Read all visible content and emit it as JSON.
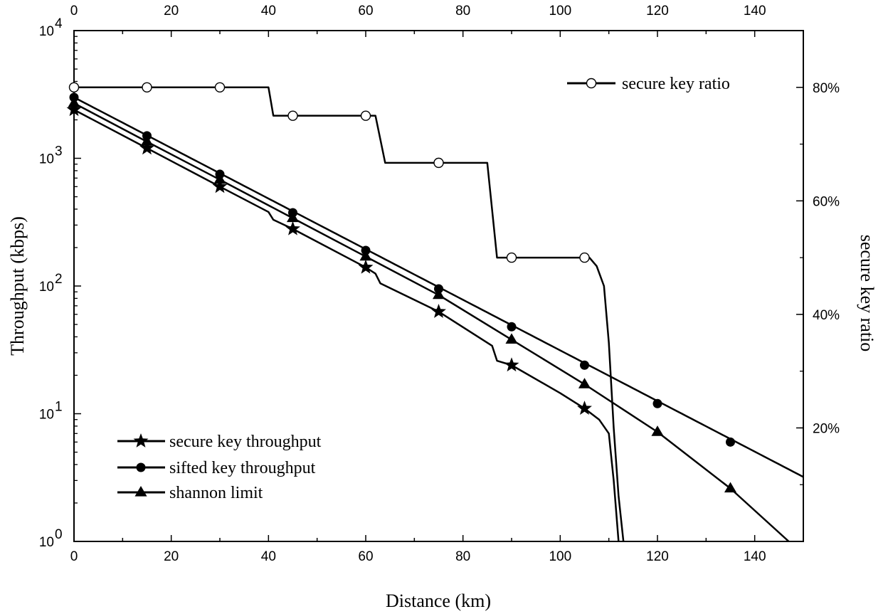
{
  "chart_data": {
    "type": "line",
    "xlabel": "Distance (km)",
    "ylabel": "Throughput (kbps)",
    "y2label": "secure key ratio",
    "xlim": [
      0,
      150
    ],
    "ylim": [
      1,
      10000
    ],
    "y_scale": "log",
    "y2lim": [
      0,
      0.9
    ],
    "x_ticks": [
      0,
      20,
      40,
      60,
      80,
      100,
      120,
      140
    ],
    "y_ticks": [
      {
        "value": 1,
        "base": "10",
        "exp": "0"
      },
      {
        "value": 10,
        "base": "10",
        "exp": "1"
      },
      {
        "value": 100,
        "base": "10",
        "exp": "2"
      },
      {
        "value": 1000,
        "base": "10",
        "exp": "3"
      },
      {
        "value": 10000,
        "base": "10",
        "exp": "4"
      }
    ],
    "y2_ticks": [
      {
        "value": 0.2,
        "label": "20%"
      },
      {
        "value": 0.4,
        "label": "40%"
      },
      {
        "value": 0.6,
        "label": "60%"
      },
      {
        "value": 0.8,
        "label": "80%"
      }
    ],
    "grid": false,
    "series": [
      {
        "name": "secure key throughput",
        "axis": "left",
        "marker": "star",
        "line": [
          [
            0,
            2400
          ],
          [
            15,
            1200
          ],
          [
            30,
            600
          ],
          [
            40,
            380
          ],
          [
            41,
            330
          ],
          [
            45,
            280
          ],
          [
            60,
            140
          ],
          [
            62,
            125
          ],
          [
            63,
            105
          ],
          [
            75,
            63
          ],
          [
            85,
            36
          ],
          [
            86,
            34
          ],
          [
            87,
            26
          ],
          [
            90,
            24
          ],
          [
            100,
            14.5
          ],
          [
            105,
            11
          ],
          [
            108,
            9
          ],
          [
            110,
            7
          ],
          [
            111,
            3
          ],
          [
            112,
            1
          ]
        ],
        "markers": [
          [
            0,
            2400
          ],
          [
            15,
            1200
          ],
          [
            30,
            600
          ],
          [
            45,
            280
          ],
          [
            60,
            140
          ],
          [
            75,
            63
          ],
          [
            90,
            24
          ],
          [
            105,
            11
          ]
        ]
      },
      {
        "name": "sifted key throughput",
        "axis": "left",
        "marker": "circle",
        "line": [
          [
            0,
            3000
          ],
          [
            150,
            3.2
          ]
        ],
        "markers": [
          [
            0,
            3000
          ],
          [
            15,
            1500
          ],
          [
            30,
            750
          ],
          [
            45,
            375
          ],
          [
            60,
            190
          ],
          [
            75,
            95
          ],
          [
            90,
            48
          ],
          [
            105,
            24
          ],
          [
            120,
            12
          ],
          [
            135,
            6
          ]
        ]
      },
      {
        "name": "shannon limit",
        "axis": "left",
        "marker": "triangle",
        "line": [
          [
            0,
            2700
          ],
          [
            15,
            1350
          ],
          [
            30,
            680
          ],
          [
            45,
            340
          ],
          [
            60,
            170
          ],
          [
            75,
            85
          ],
          [
            90,
            38
          ],
          [
            105,
            17
          ],
          [
            120,
            7.2
          ],
          [
            135,
            2.6
          ],
          [
            147,
            1
          ]
        ],
        "markers": [
          [
            0,
            2700
          ],
          [
            15,
            1350
          ],
          [
            30,
            680
          ],
          [
            45,
            340
          ],
          [
            60,
            170
          ],
          [
            75,
            85
          ],
          [
            90,
            38
          ],
          [
            105,
            17
          ],
          [
            120,
            7.2
          ],
          [
            135,
            2.6
          ]
        ]
      },
      {
        "name": "secure key ratio",
        "axis": "right",
        "marker": "open-circle",
        "line": [
          [
            0,
            0.8
          ],
          [
            40,
            0.8
          ],
          [
            41,
            0.75
          ],
          [
            62,
            0.75
          ],
          [
            64,
            0.667
          ],
          [
            85,
            0.667
          ],
          [
            87,
            0.5
          ],
          [
            106,
            0.5
          ],
          [
            107.5,
            0.485
          ],
          [
            109,
            0.45
          ],
          [
            110,
            0.35
          ],
          [
            111,
            0.2
          ],
          [
            112,
            0.08
          ],
          [
            113,
            0
          ]
        ],
        "markers": [
          [
            0,
            0.8
          ],
          [
            15,
            0.8
          ],
          [
            30,
            0.8
          ],
          [
            45,
            0.75
          ],
          [
            60,
            0.75
          ],
          [
            75,
            0.667
          ],
          [
            90,
            0.5
          ],
          [
            105,
            0.5
          ]
        ]
      }
    ],
    "legend": {
      "lower_left": [
        "secure key throughput",
        "sifted key throughput",
        "shannon limit"
      ],
      "upper_right": [
        "secure key ratio"
      ]
    }
  }
}
